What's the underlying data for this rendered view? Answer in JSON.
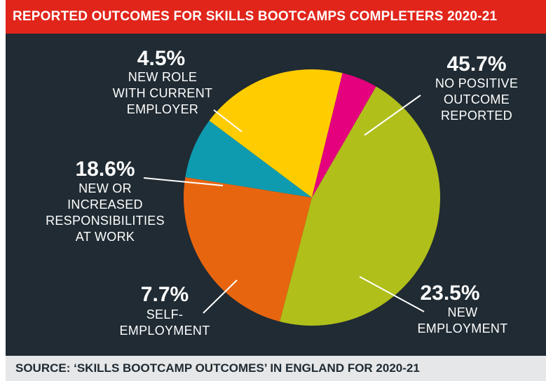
{
  "chart_data": {
    "type": "pie",
    "title": "REPORTED OUTCOMES FOR SKILLS BOOTCAMPS COMPLETERS 2020-21",
    "source": "SOURCE: ‘SKILLS BOOTCAMP OUTCOMES’ IN ENGLAND FOR 2020-21",
    "slices": [
      {
        "value": 45.7,
        "pct_label": "45.7%",
        "label_lines": [
          "NO POSITIVE",
          "OUTCOME",
          "REPORTED"
        ],
        "color": "#b0bf1a"
      },
      {
        "value": 23.5,
        "pct_label": "23.5%",
        "label_lines": [
          "NEW",
          "EMPLOYMENT"
        ],
        "color": "#e8650f"
      },
      {
        "value": 7.7,
        "pct_label": "7.7%",
        "label_lines": [
          "SELF-",
          "EMPLOYMENT"
        ],
        "color": "#0e9bb0"
      },
      {
        "value": 18.6,
        "pct_label": "18.6%",
        "label_lines": [
          "NEW OR",
          "INCREASED",
          "RESPONSIBILITIES",
          "AT WORK"
        ],
        "color": "#ffcc00"
      },
      {
        "value": 4.5,
        "pct_label": "4.5%",
        "label_lines": [
          "NEW ROLE",
          "WITH CURRENT",
          "EMPLOYER"
        ],
        "color": "#e5007e"
      }
    ],
    "legend": "none"
  }
}
